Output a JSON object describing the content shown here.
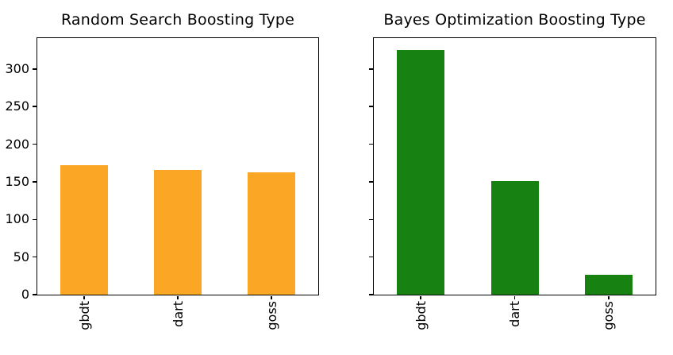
{
  "figure": {
    "background": "#ffffff",
    "axis_color": "#000000",
    "text_color": "#000000"
  },
  "chart_data": [
    {
      "type": "bar",
      "title": "Random Search Boosting Type",
      "categories": [
        "gbdt",
        "dart",
        "goss"
      ],
      "values": [
        172,
        166,
        163
      ],
      "bar_color": "#fca626",
      "yticks": [
        0,
        50,
        100,
        150,
        200,
        250,
        300
      ],
      "show_ytick_labels": true,
      "ylim": [
        0,
        341
      ],
      "xlabel": "",
      "ylabel": "",
      "grid": false,
      "legend": "none"
    },
    {
      "type": "bar",
      "title": "Bayes Optimization Boosting Type",
      "categories": [
        "gbdt",
        "dart",
        "goss"
      ],
      "values": [
        325,
        151,
        26
      ],
      "bar_color": "#178111",
      "yticks": [
        0,
        50,
        100,
        150,
        200,
        250,
        300
      ],
      "show_ytick_labels": false,
      "ylim": [
        0,
        341
      ],
      "xlabel": "",
      "ylabel": "",
      "grid": false,
      "legend": "none"
    }
  ]
}
